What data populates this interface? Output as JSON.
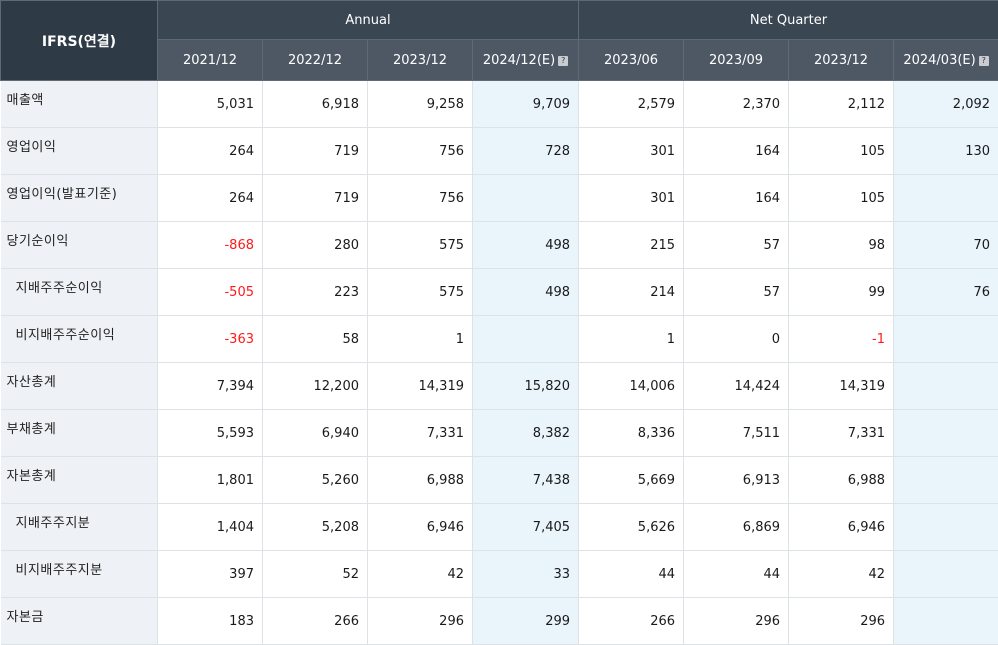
{
  "corner_label": "IFRS(연결)",
  "groups": {
    "annual": "Annual",
    "quarter": "Net Quarter"
  },
  "periods": [
    "2021/12",
    "2022/12",
    "2023/12",
    "2024/12(E)",
    "2023/06",
    "2023/09",
    "2023/12",
    "2024/03(E)"
  ],
  "estimate_columns": [
    3,
    7
  ],
  "rows": [
    {
      "label": "매출액",
      "indent": false,
      "values": [
        "5,031",
        "6,918",
        "9,258",
        "9,709",
        "2,579",
        "2,370",
        "2,112",
        "2,092"
      ]
    },
    {
      "label": "영업이익",
      "indent": false,
      "values": [
        "264",
        "719",
        "756",
        "728",
        "301",
        "164",
        "105",
        "130"
      ]
    },
    {
      "label": "영업이익(발표기준)",
      "indent": false,
      "values": [
        "264",
        "719",
        "756",
        "",
        "301",
        "164",
        "105",
        ""
      ]
    },
    {
      "label": "당기순이익",
      "indent": false,
      "values": [
        "-868",
        "280",
        "575",
        "498",
        "215",
        "57",
        "98",
        "70"
      ]
    },
    {
      "label": "지배주주순이익",
      "indent": true,
      "values": [
        "-505",
        "223",
        "575",
        "498",
        "214",
        "57",
        "99",
        "76"
      ]
    },
    {
      "label": "비지배주주순이익",
      "indent": true,
      "values": [
        "-363",
        "58",
        "1",
        "",
        "1",
        "0",
        "-1",
        ""
      ]
    },
    {
      "label": "자산총계",
      "indent": false,
      "values": [
        "7,394",
        "12,200",
        "14,319",
        "15,820",
        "14,006",
        "14,424",
        "14,319",
        ""
      ]
    },
    {
      "label": "부채총계",
      "indent": false,
      "values": [
        "5,593",
        "6,940",
        "7,331",
        "8,382",
        "8,336",
        "7,511",
        "7,331",
        ""
      ]
    },
    {
      "label": "자본총계",
      "indent": false,
      "values": [
        "1,801",
        "5,260",
        "6,988",
        "7,438",
        "5,669",
        "6,913",
        "6,988",
        ""
      ]
    },
    {
      "label": "지배주주지분",
      "indent": true,
      "values": [
        "1,404",
        "5,208",
        "6,946",
        "7,405",
        "5,626",
        "6,869",
        "6,946",
        ""
      ]
    },
    {
      "label": "비지배주주지분",
      "indent": true,
      "values": [
        "397",
        "52",
        "42",
        "33",
        "44",
        "44",
        "42",
        ""
      ]
    },
    {
      "label": "자본금",
      "indent": false,
      "values": [
        "183",
        "266",
        "296",
        "299",
        "266",
        "296",
        "296",
        ""
      ]
    }
  ],
  "colors": {
    "header_dark": "#3a4652",
    "header_mid": "#4d5864",
    "label_bg": "#eef2f6",
    "estimate_bg": "#e9f4fb",
    "negative": "#ff1a1a"
  },
  "icons": {
    "estimate_info": "info-square-icon"
  }
}
